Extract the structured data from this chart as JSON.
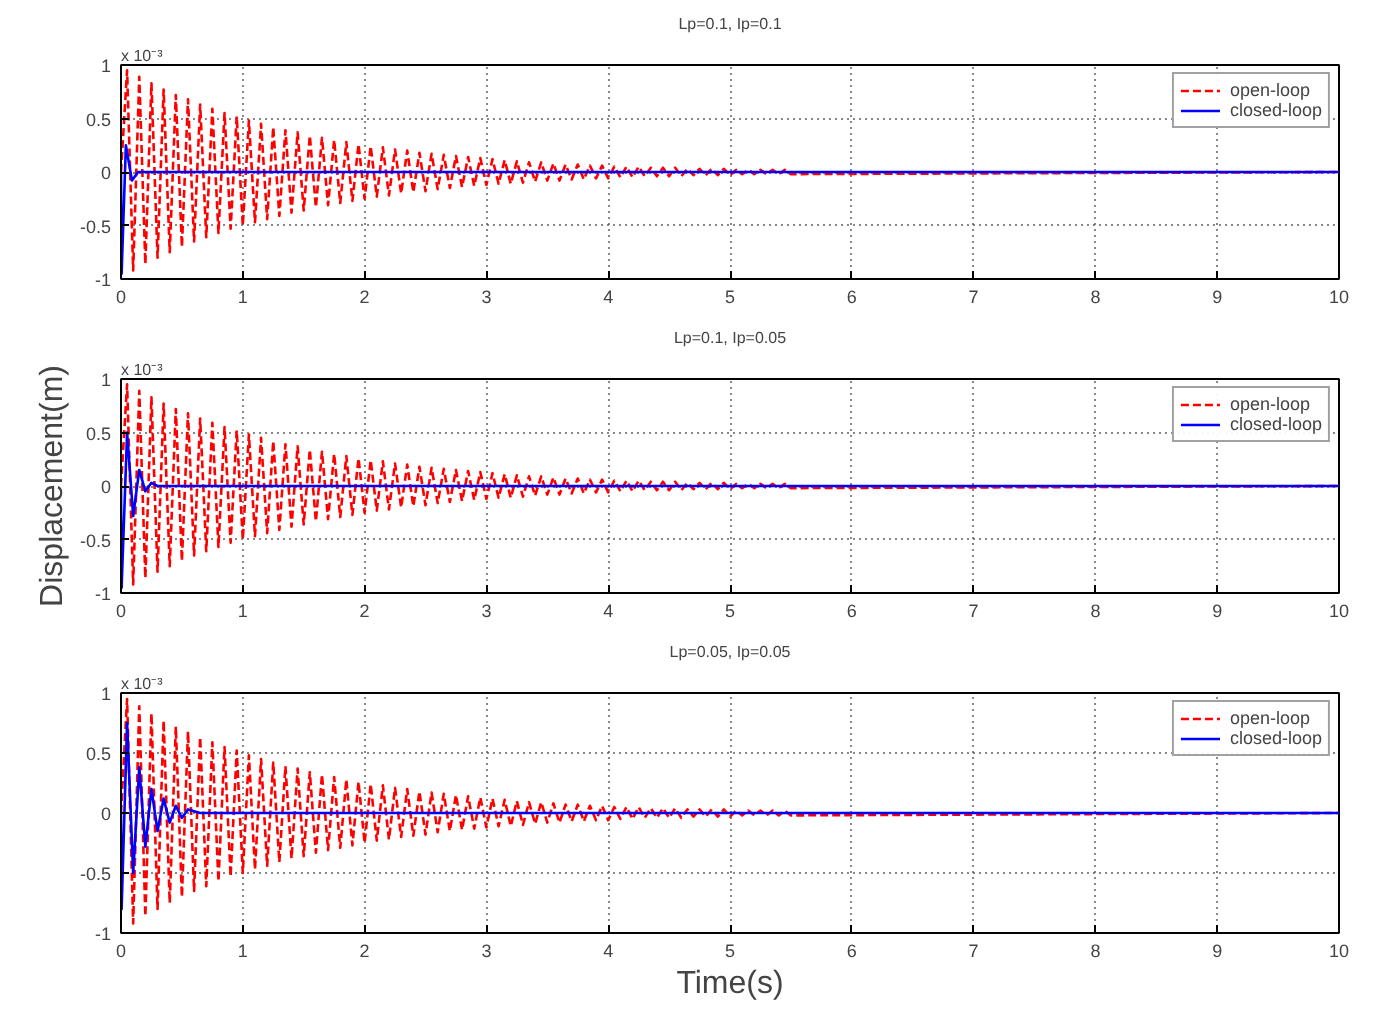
{
  "chart_data": [
    {
      "type": "line",
      "title": "Lp=0.1, Ip=0.1",
      "annotations": [
        "x 10⁻³"
      ],
      "xlim": [
        0,
        10
      ],
      "ylim": [
        -1,
        1
      ],
      "xticks": [
        0,
        1,
        2,
        3,
        4,
        5,
        6,
        7,
        8,
        9,
        10
      ],
      "yticks": [
        -1,
        -0.5,
        0,
        0.5,
        1
      ],
      "grid": true,
      "legend": "top right",
      "series": [
        {
          "name": "open-loop",
          "color": "#ff0000",
          "line_style": "dashed",
          "x": [
            0,
            0.05,
            0.1,
            0.15,
            0.2,
            0.25,
            0.3,
            0.35,
            0.4,
            0.45,
            0.5,
            0.55,
            0.6,
            0.65,
            0.7,
            0.75,
            0.8,
            0.85,
            0.9,
            0.95,
            1,
            1.05,
            1.1,
            1.15,
            1.2,
            1.25,
            1.3,
            1.35,
            1.4,
            1.45,
            1.5,
            1.55,
            1.6,
            1.65,
            1.7,
            1.75,
            1.8,
            1.85,
            1.9,
            1.95,
            2,
            2.05,
            2.1,
            2.15,
            2.2,
            2.25,
            2.3,
            2.35,
            2.4,
            2.45,
            2.5,
            2.55,
            2.6,
            2.65,
            2.7,
            2.75,
            2.8,
            2.85,
            2.9,
            2.95,
            3,
            3.05,
            3.1,
            3.15,
            3.2,
            3.25,
            3.3,
            3.35,
            3.4,
            3.45,
            3.5,
            3.55,
            3.6,
            3.65,
            3.7,
            3.75,
            3.8,
            3.85,
            3.9,
            3.95,
            4,
            4.05,
            4.1,
            4.15,
            4.2,
            4.25,
            4.3,
            4.35,
            4.4,
            4.45,
            4.5,
            4.55,
            4.6,
            4.65,
            4.7,
            4.75,
            4.8,
            4.85,
            4.9,
            4.95,
            5,
            5.05,
            5.1,
            5.15,
            5.2,
            5.25,
            5.3,
            5.35,
            5.4,
            5.45,
            5.5,
            10
          ],
          "values": [
            0,
            0.95,
            -0.92,
            0.89,
            -0.86,
            0.83,
            -0.8,
            0.77,
            -0.75,
            0.72,
            -0.7,
            0.68,
            -0.65,
            0.63,
            -0.61,
            0.59,
            -0.57,
            0.55,
            -0.53,
            0.52,
            -0.5,
            0.48,
            -0.47,
            0.45,
            -0.44,
            0.42,
            -0.41,
            0.39,
            -0.38,
            0.37,
            -0.36,
            0.34,
            -0.33,
            0.32,
            -0.31,
            0.3,
            -0.29,
            0.28,
            -0.27,
            0.26,
            -0.25,
            0.24,
            -0.23,
            0.23,
            -0.22,
            0.21,
            -0.2,
            0.2,
            -0.19,
            0.18,
            -0.18,
            0.17,
            -0.16,
            0.16,
            -0.15,
            0.15,
            -0.14,
            0.14,
            -0.13,
            0.13,
            -0.12,
            0.12,
            -0.11,
            0.11,
            -0.11,
            0.1,
            -0.1,
            0.09,
            -0.09,
            0.09,
            -0.08,
            0.08,
            -0.08,
            0.07,
            -0.07,
            0.07,
            -0.07,
            0.06,
            -0.06,
            0.06,
            -0.06,
            0.05,
            -0.05,
            0.05,
            -0.05,
            0.05,
            -0.04,
            0.04,
            -0.04,
            0.04,
            -0.04,
            0.04,
            -0.04,
            0.03,
            -0.03,
            0.03,
            -0.03,
            0.03,
            -0.03,
            0.03,
            -0.03,
            0.02,
            -0.02,
            0.02,
            -0.02,
            0.02,
            -0.02,
            0.02,
            -0.02,
            0.02,
            -0.02,
            0
          ]
        },
        {
          "name": "closed-loop",
          "color": "#0000ff",
          "line_style": "solid",
          "x": [
            0,
            0.005,
            0.04,
            0.09,
            0.14,
            10
          ],
          "values": [
            0,
            -0.95,
            0.25,
            -0.08,
            0,
            0
          ]
        }
      ]
    },
    {
      "type": "line",
      "title": "Lp=0.1, Ip=0.05",
      "ylabel": "Displacement(m)",
      "annotations": [
        "x 10⁻³"
      ],
      "xlim": [
        0,
        10
      ],
      "ylim": [
        -1,
        1
      ],
      "xticks": [
        0,
        1,
        2,
        3,
        4,
        5,
        6,
        7,
        8,
        9,
        10
      ],
      "yticks": [
        -1,
        -0.5,
        0,
        0.5,
        1
      ],
      "grid": true,
      "legend": "top right",
      "series": [
        {
          "name": "open-loop",
          "color": "#ff0000",
          "line_style": "dashed",
          "x": [
            0,
            0.05,
            0.1,
            0.15,
            0.2,
            0.25,
            0.3,
            0.35,
            0.4,
            0.45,
            0.5,
            0.55,
            0.6,
            0.65,
            0.7,
            0.75,
            0.8,
            0.85,
            0.9,
            0.95,
            1,
            1.05,
            1.1,
            1.15,
            1.2,
            1.25,
            1.3,
            1.35,
            1.4,
            1.45,
            1.5,
            1.55,
            1.6,
            1.65,
            1.7,
            1.75,
            1.8,
            1.85,
            1.9,
            1.95,
            2,
            2.05,
            2.1,
            2.15,
            2.2,
            2.25,
            2.3,
            2.35,
            2.4,
            2.45,
            2.5,
            2.55,
            2.6,
            2.65,
            2.7,
            2.75,
            2.8,
            2.85,
            2.9,
            2.95,
            3,
            3.05,
            3.1,
            3.15,
            3.2,
            3.25,
            3.3,
            3.35,
            3.4,
            3.45,
            3.5,
            3.55,
            3.6,
            3.65,
            3.7,
            3.75,
            3.8,
            3.85,
            3.9,
            3.95,
            4,
            4.05,
            4.1,
            4.15,
            4.2,
            4.25,
            4.3,
            4.35,
            4.4,
            4.45,
            4.5,
            4.55,
            4.6,
            4.65,
            4.7,
            4.75,
            4.8,
            4.85,
            4.9,
            4.95,
            5,
            5.05,
            5.1,
            5.15,
            5.2,
            5.25,
            5.3,
            5.35,
            5.4,
            5.45,
            5.5,
            10
          ],
          "values": [
            0,
            0.95,
            -0.92,
            0.89,
            -0.86,
            0.83,
            -0.8,
            0.77,
            -0.75,
            0.72,
            -0.7,
            0.68,
            -0.65,
            0.63,
            -0.61,
            0.59,
            -0.57,
            0.55,
            -0.53,
            0.52,
            -0.5,
            0.48,
            -0.47,
            0.45,
            -0.44,
            0.42,
            -0.41,
            0.39,
            -0.38,
            0.37,
            -0.36,
            0.34,
            -0.33,
            0.32,
            -0.31,
            0.3,
            -0.29,
            0.28,
            -0.27,
            0.26,
            -0.25,
            0.24,
            -0.23,
            0.23,
            -0.22,
            0.21,
            -0.2,
            0.2,
            -0.19,
            0.18,
            -0.18,
            0.17,
            -0.16,
            0.16,
            -0.15,
            0.15,
            -0.14,
            0.14,
            -0.13,
            0.13,
            -0.12,
            0.12,
            -0.11,
            0.11,
            -0.11,
            0.1,
            -0.1,
            0.09,
            -0.09,
            0.09,
            -0.08,
            0.08,
            -0.08,
            0.07,
            -0.07,
            0.07,
            -0.07,
            0.06,
            -0.06,
            0.06,
            -0.06,
            0.05,
            -0.05,
            0.05,
            -0.05,
            0.05,
            -0.04,
            0.04,
            -0.04,
            0.04,
            -0.04,
            0.04,
            -0.04,
            0.03,
            -0.03,
            0.03,
            -0.03,
            0.03,
            -0.03,
            0.03,
            -0.03,
            0.02,
            -0.02,
            0.02,
            -0.02,
            0.02,
            -0.02,
            0.02,
            -0.02,
            0.02,
            -0.02,
            0
          ]
        },
        {
          "name": "closed-loop",
          "color": "#0000ff",
          "line_style": "solid",
          "x": [
            0,
            0.005,
            0.05,
            0.1,
            0.15,
            0.2,
            0.25,
            0.3,
            10
          ],
          "values": [
            0,
            -0.95,
            0.5,
            -0.28,
            0.15,
            -0.05,
            0.03,
            0,
            0
          ]
        }
      ]
    },
    {
      "type": "line",
      "title": "Lp=0.05, Ip=0.05",
      "xlabel": "Time(s)",
      "annotations": [
        "x 10⁻³"
      ],
      "xlim": [
        0,
        10
      ],
      "ylim": [
        -1,
        1
      ],
      "xticks": [
        0,
        1,
        2,
        3,
        4,
        5,
        6,
        7,
        8,
        9,
        10
      ],
      "yticks": [
        -1,
        -0.5,
        0,
        0.5,
        1
      ],
      "grid": true,
      "legend": "top right",
      "series": [
        {
          "name": "open-loop",
          "color": "#ff0000",
          "line_style": "dashed",
          "x": [
            0,
            0.05,
            0.1,
            0.15,
            0.2,
            0.25,
            0.3,
            0.35,
            0.4,
            0.45,
            0.5,
            0.55,
            0.6,
            0.65,
            0.7,
            0.75,
            0.8,
            0.85,
            0.9,
            0.95,
            1,
            1.05,
            1.1,
            1.15,
            1.2,
            1.25,
            1.3,
            1.35,
            1.4,
            1.45,
            1.5,
            1.55,
            1.6,
            1.65,
            1.7,
            1.75,
            1.8,
            1.85,
            1.9,
            1.95,
            2,
            2.05,
            2.1,
            2.15,
            2.2,
            2.25,
            2.3,
            2.35,
            2.4,
            2.45,
            2.5,
            2.55,
            2.6,
            2.65,
            2.7,
            2.75,
            2.8,
            2.85,
            2.9,
            2.95,
            3,
            3.05,
            3.1,
            3.15,
            3.2,
            3.25,
            3.3,
            3.35,
            3.4,
            3.45,
            3.5,
            3.55,
            3.6,
            3.65,
            3.7,
            3.75,
            3.8,
            3.85,
            3.9,
            3.95,
            4,
            4.05,
            4.1,
            4.15,
            4.2,
            4.25,
            4.3,
            4.35,
            4.4,
            4.45,
            4.5,
            4.55,
            4.6,
            4.65,
            4.7,
            4.75,
            4.8,
            4.85,
            4.9,
            4.95,
            5,
            5.05,
            5.1,
            5.15,
            5.2,
            5.25,
            5.3,
            5.35,
            5.4,
            5.45,
            5.5,
            10
          ],
          "values": [
            0,
            0.95,
            -0.92,
            0.89,
            -0.86,
            0.83,
            -0.8,
            0.77,
            -0.75,
            0.72,
            -0.7,
            0.68,
            -0.65,
            0.63,
            -0.61,
            0.59,
            -0.57,
            0.55,
            -0.53,
            0.52,
            -0.5,
            0.48,
            -0.47,
            0.45,
            -0.44,
            0.42,
            -0.41,
            0.39,
            -0.38,
            0.37,
            -0.36,
            0.34,
            -0.33,
            0.32,
            -0.31,
            0.3,
            -0.29,
            0.28,
            -0.27,
            0.26,
            -0.25,
            0.24,
            -0.23,
            0.23,
            -0.22,
            0.21,
            -0.2,
            0.2,
            -0.19,
            0.18,
            -0.18,
            0.17,
            -0.16,
            0.16,
            -0.15,
            0.15,
            -0.14,
            0.14,
            -0.13,
            0.13,
            -0.12,
            0.12,
            -0.11,
            0.11,
            -0.11,
            0.1,
            -0.1,
            0.09,
            -0.09,
            0.09,
            -0.08,
            0.08,
            -0.08,
            0.07,
            -0.07,
            0.07,
            -0.07,
            0.06,
            -0.06,
            0.06,
            -0.06,
            0.05,
            -0.05,
            0.05,
            -0.05,
            0.05,
            -0.04,
            0.04,
            -0.04,
            0.04,
            -0.04,
            0.04,
            -0.04,
            0.03,
            -0.03,
            0.03,
            -0.03,
            0.03,
            -0.03,
            0.03,
            -0.03,
            0.02,
            -0.02,
            0.02,
            -0.02,
            0.02,
            -0.02,
            0.02,
            -0.02,
            0.02,
            -0.02,
            0
          ]
        },
        {
          "name": "closed-loop",
          "color": "#0000ff",
          "line_style": "solid",
          "x": [
            0,
            0.005,
            0.05,
            0.1,
            0.15,
            0.2,
            0.25,
            0.3,
            0.35,
            0.4,
            0.45,
            0.5,
            0.55,
            0.65,
            10
          ],
          "values": [
            0,
            -0.8,
            0.75,
            -0.5,
            0.38,
            -0.28,
            0.2,
            -0.15,
            0.12,
            -0.08,
            0.06,
            -0.04,
            0.03,
            0,
            0
          ]
        }
      ]
    }
  ]
}
